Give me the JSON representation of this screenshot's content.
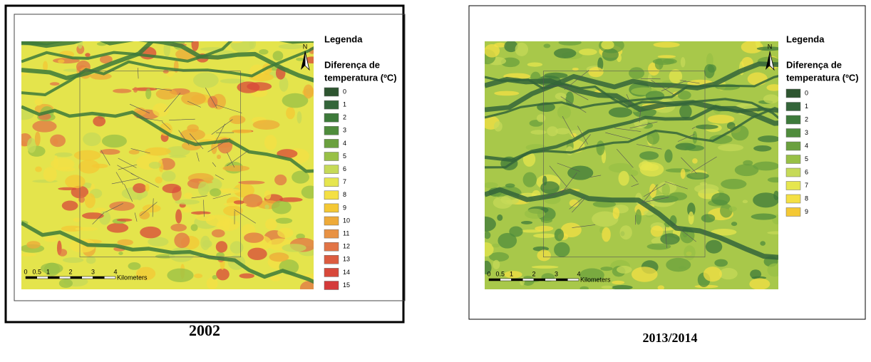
{
  "panels": [
    {
      "legend_title": "Legenda",
      "legend_subtitle": [
        "Diferença de",
        "temperatura (ºC)"
      ],
      "legend": [
        {
          "label": "0",
          "color": "#2e5530"
        },
        {
          "label": "1",
          "color": "#34653a"
        },
        {
          "label": "2",
          "color": "#3d7a3a"
        },
        {
          "label": "3",
          "color": "#4f8c3c"
        },
        {
          "label": "4",
          "color": "#6aa03e"
        },
        {
          "label": "5",
          "color": "#98c046"
        },
        {
          "label": "6",
          "color": "#c6da58"
        },
        {
          "label": "7",
          "color": "#e6e64e"
        },
        {
          "label": "8",
          "color": "#f4e044"
        },
        {
          "label": "9",
          "color": "#f4c834"
        },
        {
          "label": "10",
          "color": "#eeaa38"
        },
        {
          "label": "11",
          "color": "#e89244"
        },
        {
          "label": "12",
          "color": "#e27446"
        },
        {
          "label": "13",
          "color": "#dc5c40"
        },
        {
          "label": "14",
          "color": "#d8483a"
        },
        {
          "label": "15",
          "color": "#d43a3a"
        }
      ],
      "scale": {
        "labels": [
          "0",
          "0.5",
          "1",
          "2",
          "3",
          "4"
        ],
        "unit": "Kilometers"
      },
      "north": "N",
      "caption": "2002"
    },
    {
      "legend_title": "Legenda",
      "legend_subtitle": [
        "Diferença de",
        "temperatura (ºC)"
      ],
      "legend": [
        {
          "label": "0",
          "color": "#2e5530"
        },
        {
          "label": "1",
          "color": "#34653a"
        },
        {
          "label": "2",
          "color": "#3d7a3a"
        },
        {
          "label": "3",
          "color": "#4f8c3c"
        },
        {
          "label": "4",
          "color": "#6aa03e"
        },
        {
          "label": "5",
          "color": "#98c046"
        },
        {
          "label": "6",
          "color": "#c6da58"
        },
        {
          "label": "7",
          "color": "#e6e64e"
        },
        {
          "label": "8",
          "color": "#f4e044"
        },
        {
          "label": "9",
          "color": "#f4c834"
        }
      ],
      "scale": {
        "labels": [
          "0",
          "0.5",
          "1",
          "2",
          "3",
          "4"
        ],
        "unit": "Kilometers"
      },
      "north": "N",
      "caption": "2013/2014"
    }
  ]
}
